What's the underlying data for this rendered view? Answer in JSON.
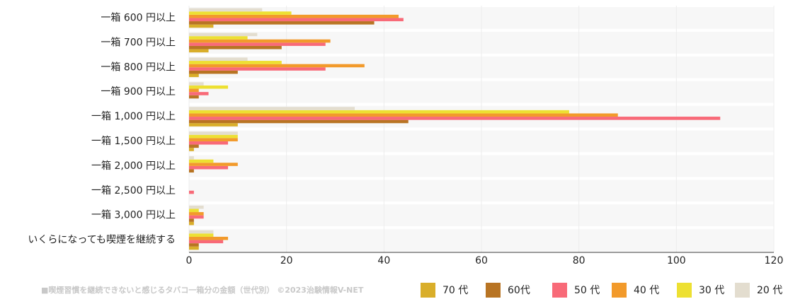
{
  "chart_data": {
    "type": "hbar",
    "title": "■喫煙習慣を継続できないと感じるタバコ一箱分の金額（世代別） ©2023治験情報V-NET",
    "categories": [
      "一箱 600 円以上",
      "一箱 700 円以上",
      "一箱 800 円以上",
      "一箱 900 円以上",
      "一箱 1,000 円以上",
      "一箱 1,500 円以上",
      "一箱 2,000 円以上",
      "一箱 2,500 円以上",
      "一箱 3,000 円以上",
      "いくらになっても喫煙を継続する"
    ],
    "series": [
      {
        "name": "70 代",
        "color": "#d9ae2a",
        "values": [
          5,
          4,
          2,
          0,
          10,
          1,
          0,
          0,
          1,
          2
        ]
      },
      {
        "name": "60代",
        "color": "#b87423",
        "values": [
          38,
          19,
          10,
          2,
          45,
          2,
          1,
          0,
          1,
          2
        ]
      },
      {
        "name": "50 代",
        "color": "#f86a78",
        "values": [
          44,
          28,
          28,
          4,
          109,
          8,
          8,
          1,
          3,
          7
        ]
      },
      {
        "name": "40 代",
        "color": "#f29a2b",
        "values": [
          43,
          29,
          36,
          2,
          88,
          10,
          10,
          0,
          3,
          8
        ]
      },
      {
        "name": "30 代",
        "color": "#ede032",
        "values": [
          21,
          12,
          19,
          8,
          78,
          10,
          5,
          0,
          2,
          5
        ]
      },
      {
        "name": "20 代",
        "color": "#e3ddcf",
        "values": [
          15,
          14,
          12,
          3,
          34,
          10,
          1,
          0,
          3,
          5
        ]
      }
    ],
    "xlim": [
      0,
      120
    ],
    "xticks": [
      0,
      20,
      40,
      60,
      80,
      100,
      120
    ],
    "grid": true
  }
}
